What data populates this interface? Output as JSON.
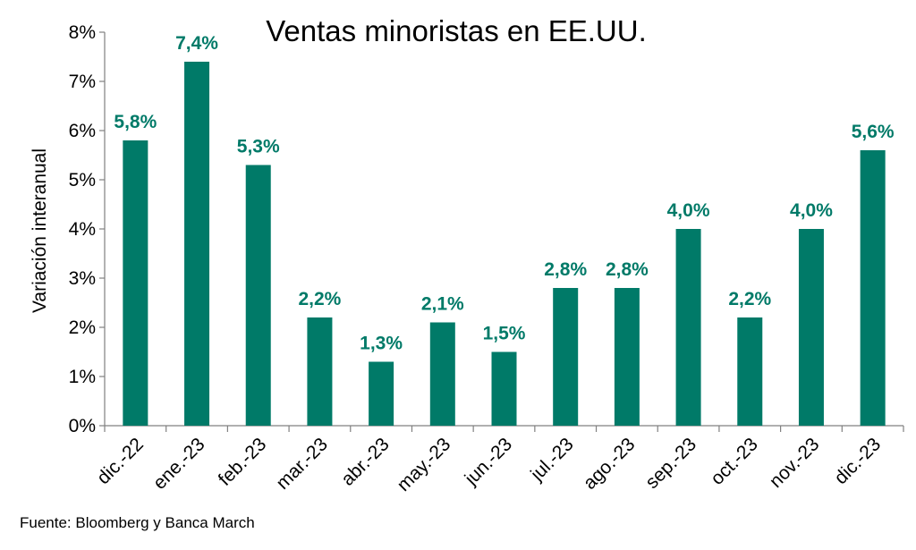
{
  "chart_data": {
    "type": "bar",
    "title": "Ventas minoristas en EE.UU.",
    "xlabel": "",
    "ylabel": "Variación interanual",
    "categories": [
      "dic.-22",
      "ene.-23",
      "feb.-23",
      "mar.-23",
      "abr.-23",
      "may.-23",
      "jun.-23",
      "jul.-23",
      "ago.-23",
      "sep.-23",
      "oct.-23",
      "nov.-23",
      "dic.-23"
    ],
    "values": [
      5.8,
      7.4,
      5.3,
      2.2,
      1.3,
      2.1,
      1.5,
      2.8,
      2.8,
      4.0,
      2.2,
      4.0,
      5.6
    ],
    "data_labels": [
      "5,8%",
      "7,4%",
      "5,3%",
      "2,2%",
      "1,3%",
      "2,1%",
      "1,5%",
      "2,8%",
      "2,8%",
      "4,0%",
      "2,2%",
      "4,0%",
      "5,6%"
    ],
    "ylim": [
      0,
      8
    ],
    "yticks": [
      0,
      1,
      2,
      3,
      4,
      5,
      6,
      7,
      8
    ],
    "ytick_labels": [
      "0%",
      "1%",
      "2%",
      "3%",
      "4%",
      "5%",
      "6%",
      "7%",
      "8%"
    ],
    "grid": false,
    "legend": "none",
    "bar_color": "#007A68",
    "label_color": "#007A68"
  },
  "source": "Fuente: Bloomberg y Banca March"
}
